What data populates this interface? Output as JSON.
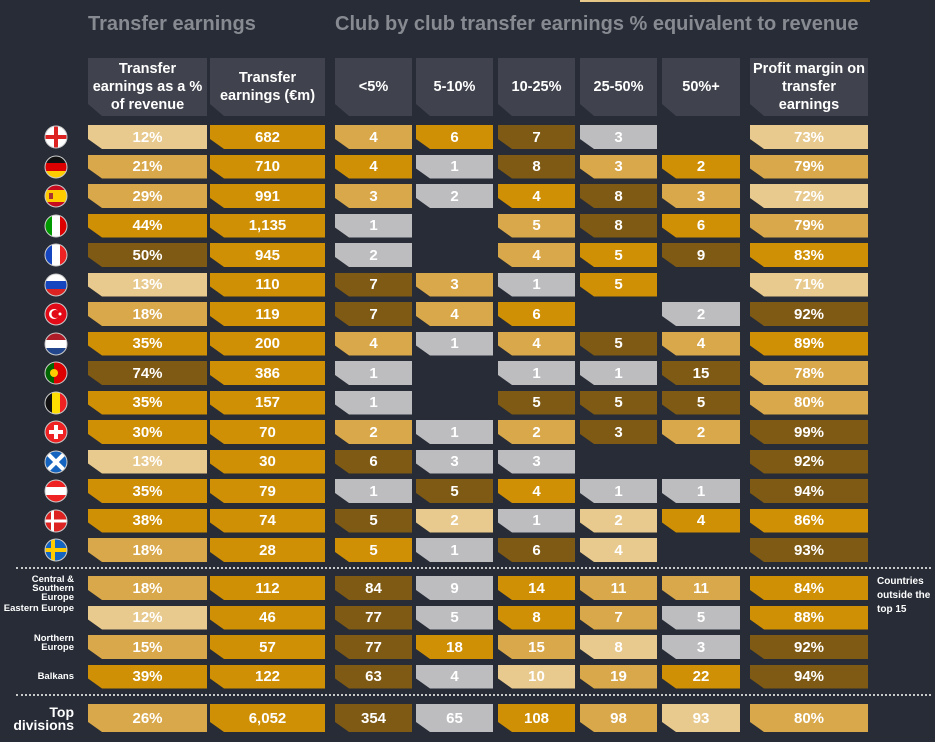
{
  "titles": {
    "left": "Transfer earnings",
    "right": "Club by club transfer earnings % equivalent to revenue"
  },
  "headers": [
    "Transfer earnings as a % of revenue",
    "Transfer earnings (€m)",
    "<5%",
    "5-10%",
    "10-25%",
    "25-50%",
    "50%+",
    "Profit margin on transfer earnings"
  ],
  "note": "Countries outside the top 15",
  "colors": {
    "L": "#e8ca8e",
    "M": "#d9a84a",
    "G": "#cf9006",
    "D": "#7f5a14",
    "S": "#bdbdc0",
    "background": "#272c36",
    "header": "#40434d"
  },
  "chart_data": {
    "type": "table",
    "title": "Transfer earnings / Club by club transfer earnings % equivalent to revenue",
    "columns": [
      "Transfer earnings as a % of revenue",
      "Transfer earnings (€m)",
      "<5%",
      "5-10%",
      "10-25%",
      "25-50%",
      "50%+",
      "Profit margin on transfer earnings"
    ],
    "rows": [
      {
        "flag": "england-flag-icon",
        "values": [
          "12%",
          "682",
          "4",
          "6",
          "7",
          "3",
          "",
          "73%"
        ],
        "shades": [
          "L",
          "G",
          "M",
          "G",
          "D",
          "S",
          "",
          "L"
        ]
      },
      {
        "flag": "germany-flag-icon",
        "values": [
          "21%",
          "710",
          "4",
          "1",
          "8",
          "3",
          "2",
          "79%"
        ],
        "shades": [
          "M",
          "G",
          "G",
          "S",
          "D",
          "M",
          "G",
          "M"
        ]
      },
      {
        "flag": "spain-flag-icon",
        "values": [
          "29%",
          "991",
          "3",
          "2",
          "4",
          "8",
          "3",
          "72%"
        ],
        "shades": [
          "M",
          "G",
          "M",
          "S",
          "G",
          "D",
          "M",
          "L"
        ]
      },
      {
        "flag": "italy-flag-icon",
        "values": [
          "44%",
          "1,135",
          "1",
          "",
          "5",
          "8",
          "6",
          "79%"
        ],
        "shades": [
          "G",
          "G",
          "S",
          "",
          "M",
          "D",
          "G",
          "M"
        ]
      },
      {
        "flag": "france-flag-icon",
        "values": [
          "50%",
          "945",
          "2",
          "",
          "4",
          "5",
          "9",
          "83%"
        ],
        "shades": [
          "D",
          "G",
          "S",
          "",
          "M",
          "G",
          "D",
          "G"
        ]
      },
      {
        "flag": "russia-flag-icon",
        "values": [
          "13%",
          "110",
          "7",
          "3",
          "1",
          "5",
          "",
          "71%"
        ],
        "shades": [
          "L",
          "G",
          "D",
          "M",
          "S",
          "G",
          "",
          "L"
        ]
      },
      {
        "flag": "turkey-flag-icon",
        "values": [
          "18%",
          "119",
          "7",
          "4",
          "6",
          "",
          "2",
          "92%"
        ],
        "shades": [
          "M",
          "G",
          "D",
          "M",
          "G",
          "",
          "S",
          "D"
        ]
      },
      {
        "flag": "netherlands-flag-icon",
        "values": [
          "35%",
          "200",
          "4",
          "1",
          "4",
          "5",
          "4",
          "89%"
        ],
        "shades": [
          "G",
          "G",
          "M",
          "S",
          "M",
          "D",
          "M",
          "G"
        ]
      },
      {
        "flag": "portugal-flag-icon",
        "values": [
          "74%",
          "386",
          "1",
          "",
          "1",
          "1",
          "15",
          "78%"
        ],
        "shades": [
          "D",
          "G",
          "S",
          "",
          "S",
          "S",
          "D",
          "M"
        ]
      },
      {
        "flag": "belgium-flag-icon",
        "values": [
          "35%",
          "157",
          "1",
          "",
          "5",
          "5",
          "5",
          "80%"
        ],
        "shades": [
          "G",
          "G",
          "S",
          "",
          "D",
          "D",
          "D",
          "M"
        ]
      },
      {
        "flag": "switzerland-flag-icon",
        "values": [
          "30%",
          "70",
          "2",
          "1",
          "2",
          "3",
          "2",
          "99%"
        ],
        "shades": [
          "G",
          "G",
          "M",
          "S",
          "M",
          "D",
          "M",
          "D"
        ]
      },
      {
        "flag": "scotland-flag-icon",
        "values": [
          "13%",
          "30",
          "6",
          "3",
          "3",
          "",
          "",
          "92%"
        ],
        "shades": [
          "L",
          "G",
          "D",
          "S",
          "S",
          "",
          "",
          "D"
        ]
      },
      {
        "flag": "austria-flag-icon",
        "values": [
          "35%",
          "79",
          "1",
          "5",
          "4",
          "1",
          "1",
          "94%"
        ],
        "shades": [
          "G",
          "G",
          "S",
          "D",
          "G",
          "S",
          "S",
          "D"
        ]
      },
      {
        "flag": "denmark-flag-icon",
        "values": [
          "38%",
          "74",
          "5",
          "2",
          "1",
          "2",
          "4",
          "86%"
        ],
        "shades": [
          "G",
          "G",
          "D",
          "L",
          "S",
          "L",
          "G",
          "G"
        ]
      },
      {
        "flag": "sweden-flag-icon",
        "values": [
          "18%",
          "28",
          "5",
          "1",
          "6",
          "4",
          "",
          "93%"
        ],
        "shades": [
          "M",
          "G",
          "G",
          "S",
          "D",
          "L",
          "",
          "D"
        ]
      }
    ],
    "regions": [
      {
        "label": "Central & Southern Europe",
        "values": [
          "18%",
          "112",
          "84",
          "9",
          "14",
          "11",
          "11",
          "84%"
        ],
        "shades": [
          "M",
          "G",
          "D",
          "S",
          "G",
          "M",
          "M",
          "G"
        ]
      },
      {
        "label": "Eastern Europe",
        "values": [
          "12%",
          "46",
          "77",
          "5",
          "8",
          "7",
          "5",
          "88%"
        ],
        "shades": [
          "L",
          "G",
          "D",
          "S",
          "G",
          "M",
          "S",
          "G"
        ]
      },
      {
        "label": "Northern Europe",
        "values": [
          "15%",
          "57",
          "77",
          "18",
          "15",
          "8",
          "3",
          "92%"
        ],
        "shades": [
          "M",
          "G",
          "D",
          "G",
          "M",
          "L",
          "S",
          "D"
        ]
      },
      {
        "label": "Balkans",
        "values": [
          "39%",
          "122",
          "63",
          "4",
          "10",
          "19",
          "22",
          "94%"
        ],
        "shades": [
          "G",
          "G",
          "D",
          "S",
          "L",
          "M",
          "G",
          "D"
        ]
      }
    ],
    "total": {
      "label": "Top divisions",
      "values": [
        "26%",
        "6,052",
        "354",
        "65",
        "108",
        "98",
        "93",
        "80%"
      ],
      "shades": [
        "M",
        "G",
        "D",
        "S",
        "G",
        "M",
        "L",
        "M"
      ]
    }
  }
}
